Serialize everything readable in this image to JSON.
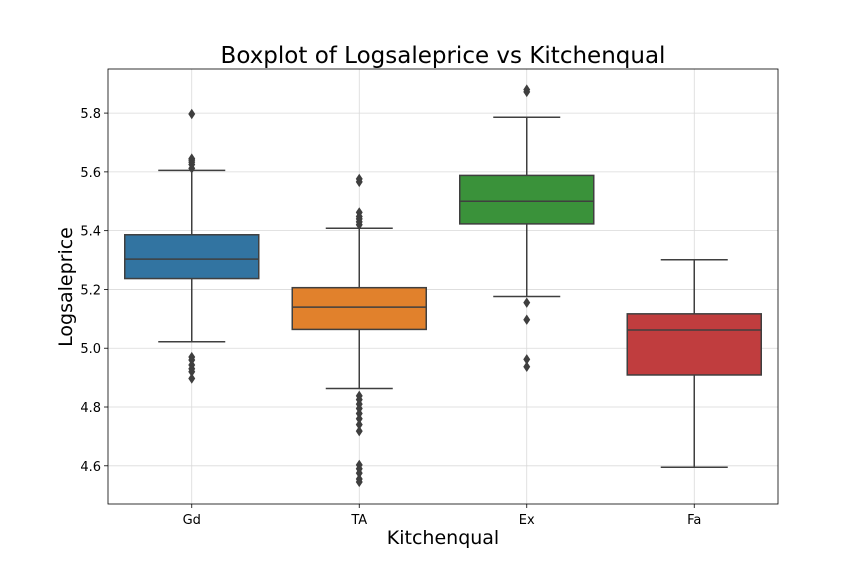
{
  "chart_data": {
    "type": "box",
    "title": "Boxplot of Logsaleprice vs Kitchenqual",
    "xlabel": "Kitchenqual",
    "ylabel": "Logsaleprice",
    "ylim": [
      4.47,
      5.95
    ],
    "yticks": [
      "4.6",
      "4.8",
      "5.0",
      "5.2",
      "5.4",
      "5.6",
      "5.8"
    ],
    "grid": true,
    "categories": [
      "Gd",
      "TA",
      "Ex",
      "Fa"
    ],
    "colors": [
      "#3274a1",
      "#e1812c",
      "#3a923a",
      "#c03d3e"
    ],
    "boxes": [
      {
        "category": "Gd",
        "whisker_low": 5.022,
        "q1": 5.237,
        "median": 5.303,
        "q3": 5.386,
        "whisker_high": 5.605,
        "outliers": [
          5.797,
          5.645,
          5.64,
          5.633,
          5.625,
          5.612,
          4.97,
          4.96,
          4.943,
          4.93,
          4.92,
          4.897
        ]
      },
      {
        "category": "TA",
        "whisker_low": 4.863,
        "q1": 5.064,
        "median": 5.14,
        "q3": 5.206,
        "whisker_high": 5.408,
        "outliers": [
          5.576,
          5.566,
          5.462,
          5.448,
          5.44,
          5.43,
          5.42,
          4.838,
          4.825,
          4.81,
          4.795,
          4.778,
          4.76,
          4.74,
          4.718,
          4.603,
          4.59,
          4.575,
          4.555,
          4.545
        ]
      },
      {
        "category": "Ex",
        "whisker_low": 5.176,
        "q1": 5.423,
        "median": 5.5,
        "q3": 5.588,
        "whisker_high": 5.786,
        "outliers": [
          5.88,
          5.872,
          5.155,
          5.097,
          4.962,
          4.937
        ]
      },
      {
        "category": "Fa",
        "whisker_low": 4.595,
        "q1": 4.909,
        "median": 5.062,
        "q3": 5.117,
        "whisker_high": 5.301,
        "outliers": []
      }
    ]
  }
}
